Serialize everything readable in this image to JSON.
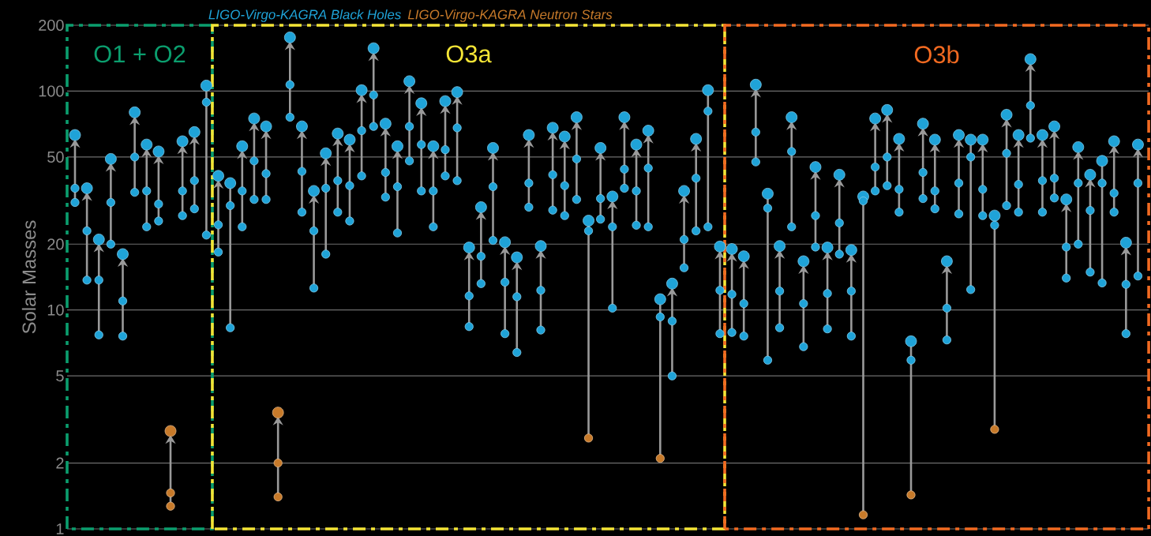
{
  "chart_data": {
    "type": "scatter",
    "ylabel": "Solar Masses",
    "log": "y",
    "grid": "y",
    "tick_labels": "y",
    "marker": "circle",
    "categories": [
      null,
      null,
      null,
      null,
      null,
      null,
      null,
      null,
      null,
      null,
      null,
      null,
      null,
      null,
      null,
      null,
      null,
      null,
      null,
      null,
      null,
      null,
      null,
      null,
      null,
      null,
      null,
      null,
      null,
      null,
      null,
      null,
      null,
      null,
      null,
      null,
      null,
      null,
      null,
      null,
      null,
      null,
      null,
      null,
      null,
      null,
      null,
      null,
      null,
      null,
      null,
      null,
      null,
      null,
      null,
      null,
      null,
      null,
      null,
      null,
      null,
      null,
      null,
      null,
      null,
      null,
      null,
      null,
      null,
      null,
      null,
      null,
      null,
      null,
      null,
      null,
      null,
      null,
      null,
      null,
      null,
      null,
      null,
      null,
      null,
      null,
      null,
      null,
      null,
      null
    ],
    "ylim": [
      1,
      200
    ],
    "yticks": [
      1,
      2,
      5,
      10,
      20,
      50,
      100,
      200
    ],
    "annotations": [
      "O1 + O2",
      "O3a",
      "O3b"
    ],
    "series": [
      {
        "name": "LIGO-Virgo-KAGRA Black Holes",
        "color": "#1fa3d8",
        "values": [
          63,
          36,
          21,
          49,
          18,
          80,
          57,
          53,
          null,
          59,
          65,
          106,
          41,
          38,
          56,
          75,
          69,
          null,
          176,
          69,
          35,
          52,
          64,
          60,
          101,
          157,
          71,
          56,
          111,
          88,
          56,
          90,
          99,
          19.3,
          29.5,
          55,
          20.4,
          17.4,
          63,
          19.6,
          68,
          62,
          76,
          25.6,
          55,
          33,
          76,
          57,
          66,
          11.2,
          13.2,
          35,
          60.5,
          101,
          19.5,
          19,
          17.6,
          107,
          34,
          19.6,
          76,
          16.7,
          45,
          19.3,
          41.5,
          18.8,
          33,
          75,
          82,
          60.5,
          7.2,
          71,
          60,
          16.7,
          63,
          60,
          60,
          27,
          78,
          63,
          140,
          63,
          69,
          32,
          55.5,
          41.5,
          48,
          59,
          20.3,
          57
        ]
      },
      {
        "name": "LIGO-Virgo-KAGRA Neutron Stars",
        "color": "#c77a2a",
        "values": [
          null,
          null,
          null,
          null,
          null,
          null,
          null,
          null,
          2.8,
          null,
          null,
          null,
          null,
          null,
          null,
          null,
          null,
          3.4,
          null,
          null,
          null,
          null,
          null,
          null,
          null,
          null,
          null,
          null,
          null,
          null,
          null,
          null,
          null,
          null,
          null,
          null,
          null,
          null,
          null,
          null,
          null,
          null,
          null,
          null,
          null,
          null,
          null,
          null,
          null,
          null,
          null,
          null,
          null,
          null,
          null,
          null,
          null,
          null,
          null,
          null,
          null,
          null,
          null,
          null,
          null,
          null,
          null,
          null,
          null,
          null,
          null,
          null,
          null,
          null,
          null,
          null,
          null,
          null,
          null,
          null,
          null,
          null,
          null,
          null,
          null,
          null,
          null,
          null,
          null,
          null
        ]
      },
      {
        "color": "#1fa3d8",
        "values": [
          36,
          23,
          13.7,
          31,
          11,
          50,
          35,
          30.5,
          null,
          35,
          39,
          89,
          24.5,
          30,
          35,
          48,
          42,
          null,
          107,
          43,
          23,
          36,
          39,
          37,
          66,
          96,
          42.5,
          36.6,
          69,
          57,
          35,
          54,
          68,
          11.6,
          17.6,
          36.6,
          13.4,
          11.5,
          38,
          12.3,
          41.5,
          37,
          49,
          23,
          32.3,
          24,
          44,
          35,
          44.5,
          9.3,
          8.9,
          21,
          40,
          81,
          12.3,
          11.8,
          10.7,
          65,
          29.2,
          12.2,
          53,
          10.7,
          27,
          11.9,
          25,
          12.2,
          31.5,
          45,
          50,
          35.6,
          5.9,
          42.5,
          35,
          10.2,
          38,
          50,
          35.6,
          24.4,
          52,
          37.5,
          86,
          39,
          40,
          19.4,
          38,
          28.5,
          38,
          34.2,
          13.1,
          38
        ]
      },
      {
        "color": "#1fa3d8",
        "values": [
          31,
          13.7,
          7.7,
          20,
          7.6,
          34.5,
          24,
          25.5,
          null,
          27,
          29,
          22,
          18.4,
          8.3,
          24,
          32,
          32,
          null,
          76,
          28,
          12.6,
          18,
          28,
          25.5,
          41,
          69,
          32.8,
          22.5,
          48,
          35,
          24,
          41,
          39,
          8.4,
          13.2,
          20.8,
          7.8,
          6.4,
          29.5,
          8.1,
          28.6,
          27,
          32,
          null,
          26,
          10.2,
          36,
          24.4,
          24,
          null,
          5,
          15.6,
          23,
          24,
          7.8,
          7.9,
          7.6,
          47.5,
          5.9,
          8.3,
          24,
          6.8,
          19.4,
          8.2,
          18,
          7.6,
          null,
          35,
          37,
          28,
          null,
          32.3,
          29,
          7.3,
          27.5,
          12.4,
          27,
          null,
          30,
          28,
          61,
          28,
          32.5,
          14,
          20,
          14.9,
          13.3,
          28,
          7.8,
          14.3
        ]
      },
      {
        "color": "#c77a2a",
        "values": [
          null,
          null,
          null,
          null,
          null,
          null,
          null,
          null,
          1.46,
          null,
          null,
          null,
          null,
          null,
          null,
          null,
          null,
          2.0,
          null,
          null,
          null,
          null,
          null,
          null,
          null,
          null,
          null,
          null,
          null,
          null,
          null,
          null,
          null,
          null,
          null,
          null,
          null,
          null,
          null,
          null,
          null,
          null,
          null,
          null,
          null,
          null,
          null,
          null,
          null,
          null,
          null,
          null,
          null,
          null,
          null,
          null,
          null,
          null,
          null,
          null,
          null,
          null,
          null,
          null,
          null,
          null,
          null,
          null,
          null,
          null,
          null,
          null,
          null,
          null,
          null,
          null,
          null,
          null,
          null,
          null,
          null,
          null,
          null,
          null,
          null,
          null,
          null,
          null,
          null,
          null
        ]
      },
      {
        "color": "#c77a2a",
        "values": [
          null,
          null,
          null,
          null,
          null,
          null,
          null,
          null,
          1.27,
          null,
          null,
          null,
          null,
          null,
          null,
          null,
          null,
          1.4,
          null,
          null,
          null,
          null,
          null,
          null,
          null,
          null,
          null,
          null,
          null,
          null,
          null,
          null,
          null,
          null,
          null,
          null,
          null,
          null,
          null,
          null,
          null,
          null,
          null,
          2.6,
          null,
          null,
          null,
          null,
          null,
          2.1,
          null,
          null,
          null,
          null,
          null,
          null,
          null,
          null,
          null,
          null,
          null,
          null,
          null,
          null,
          null,
          null,
          1.16,
          null,
          null,
          null,
          1.43,
          null,
          null,
          null,
          null,
          null,
          null,
          2.85,
          null,
          null,
          null,
          null,
          null,
          null,
          null,
          null,
          null,
          null,
          null,
          null
        ]
      }
    ]
  }
}
